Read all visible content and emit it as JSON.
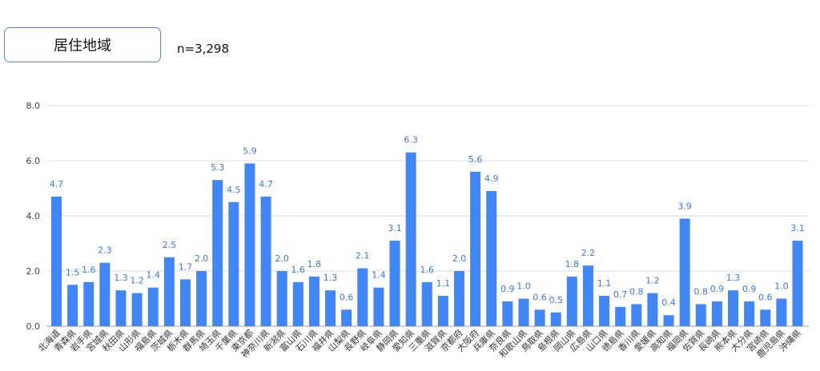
{
  "header": {
    "title": "居住地域",
    "sample": "n=3,298"
  },
  "colors": {
    "bar": "#4285f4",
    "data_label": "#3b78e7",
    "grid": "#dddddd",
    "baseline": "#9e9e9e",
    "tick_label": "#444444",
    "box_border": "#5b8bd0"
  },
  "chart_data": {
    "type": "bar",
    "categories": [
      "北海道",
      "青森県",
      "岩手県",
      "宮城県",
      "秋田県",
      "山形県",
      "福島県",
      "茨城県",
      "栃木県",
      "群馬県",
      "埼玉県",
      "千葉県",
      "東京都",
      "神奈川県",
      "新潟県",
      "富山県",
      "石川県",
      "福井県",
      "山梨県",
      "長野県",
      "岐阜県",
      "静岡県",
      "愛知県",
      "三重県",
      "滋賀県",
      "京都府",
      "大阪府",
      "兵庫県",
      "奈良県",
      "和歌山県",
      "鳥取県",
      "島根県",
      "岡山県",
      "広島県",
      "山口県",
      "徳島県",
      "香川県",
      "愛媛県",
      "高知県",
      "福岡県",
      "佐賀県",
      "長崎県",
      "熊本県",
      "大分県",
      "宮崎県",
      "鹿児島県",
      "沖縄県"
    ],
    "values": [
      4.7,
      1.5,
      1.6,
      2.3,
      1.3,
      1.2,
      1.4,
      2.5,
      1.7,
      2.0,
      5.3,
      4.5,
      5.9,
      4.7,
      2.0,
      1.6,
      1.8,
      1.3,
      0.6,
      2.1,
      1.4,
      3.1,
      6.3,
      1.6,
      1.1,
      2.0,
      5.6,
      4.9,
      0.9,
      1.0,
      0.6,
      0.5,
      1.8,
      2.2,
      1.1,
      0.7,
      0.8,
      1.2,
      0.4,
      3.9,
      0.8,
      0.9,
      1.3,
      0.9,
      0.6,
      1.0,
      3.1
    ],
    "yticks": [
      "0.0",
      "2.0",
      "4.0",
      "6.0",
      "8.0"
    ],
    "ylim": [
      0,
      8
    ],
    "grid": true,
    "legend": "none",
    "data_labels": true
  }
}
